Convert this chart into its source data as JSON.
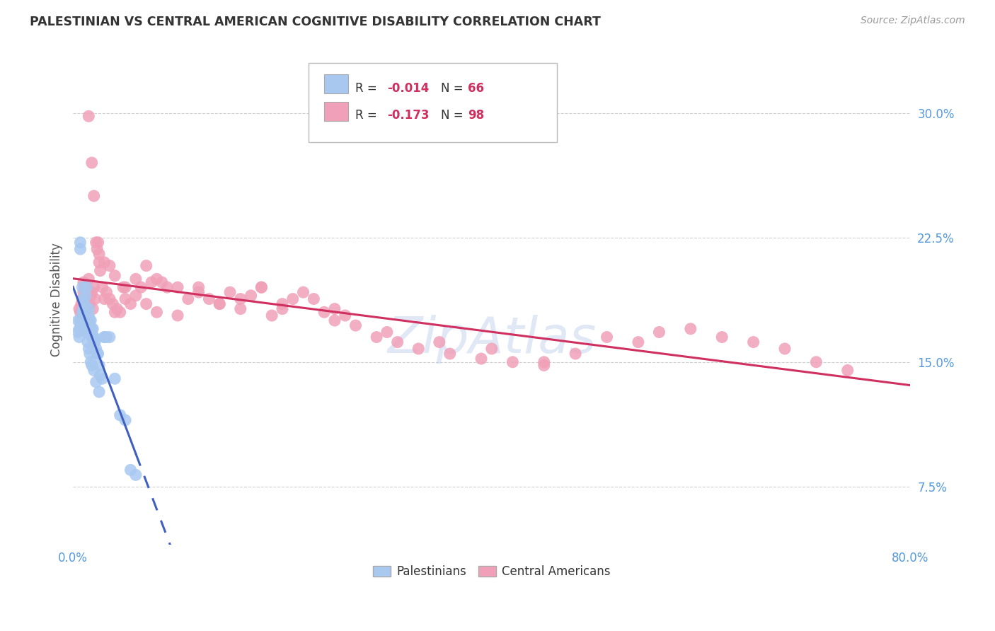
{
  "title": "PALESTINIAN VS CENTRAL AMERICAN COGNITIVE DISABILITY CORRELATION CHART",
  "source": "Source: ZipAtlas.com",
  "ylabel": "Cognitive Disability",
  "xlim": [
    0.0,
    0.8
  ],
  "ylim": [
    0.04,
    0.335
  ],
  "yticks": [
    0.075,
    0.15,
    0.225,
    0.3
  ],
  "ytick_labels": [
    "7.5%",
    "15.0%",
    "22.5%",
    "30.0%"
  ],
  "xticks": [
    0.0,
    0.1,
    0.2,
    0.3,
    0.4,
    0.5,
    0.6,
    0.7,
    0.8
  ],
  "xtick_labels": [
    "0.0%",
    "",
    "",
    "",
    "",
    "",
    "",
    "",
    "80.0%"
  ],
  "grid_color": "#d0d0d0",
  "background_color": "#ffffff",
  "palestinians": {
    "R": -0.014,
    "N": 66,
    "color": "#a8c8f0",
    "line_color": "#4060c0",
    "label": "Palestinians",
    "x": [
      0.005,
      0.005,
      0.006,
      0.006,
      0.007,
      0.007,
      0.008,
      0.008,
      0.009,
      0.009,
      0.01,
      0.01,
      0.01,
      0.01,
      0.011,
      0.011,
      0.012,
      0.012,
      0.013,
      0.013,
      0.013,
      0.014,
      0.014,
      0.015,
      0.015,
      0.016,
      0.016,
      0.017,
      0.017,
      0.018,
      0.018,
      0.019,
      0.019,
      0.02,
      0.02,
      0.021,
      0.022,
      0.023,
      0.024,
      0.025,
      0.026,
      0.028,
      0.03,
      0.032,
      0.035,
      0.04,
      0.045,
      0.05,
      0.055,
      0.06,
      0.007,
      0.008,
      0.009,
      0.01,
      0.011,
      0.012,
      0.013,
      0.014,
      0.015,
      0.016,
      0.017,
      0.018,
      0.02,
      0.022,
      0.025,
      0.03
    ],
    "y": [
      0.175,
      0.168,
      0.165,
      0.17,
      0.222,
      0.218,
      0.175,
      0.172,
      0.195,
      0.18,
      0.188,
      0.182,
      0.175,
      0.178,
      0.185,
      0.178,
      0.19,
      0.175,
      0.195,
      0.178,
      0.17,
      0.175,
      0.172,
      0.182,
      0.178,
      0.175,
      0.168,
      0.175,
      0.168,
      0.17,
      0.165,
      0.17,
      0.165,
      0.165,
      0.162,
      0.162,
      0.158,
      0.155,
      0.155,
      0.148,
      0.142,
      0.14,
      0.165,
      0.165,
      0.165,
      0.14,
      0.118,
      0.115,
      0.085,
      0.082,
      0.175,
      0.172,
      0.175,
      0.178,
      0.175,
      0.17,
      0.168,
      0.162,
      0.158,
      0.155,
      0.15,
      0.148,
      0.145,
      0.138,
      0.132,
      0.165
    ]
  },
  "central_americans": {
    "R": -0.173,
    "N": 98,
    "color": "#f0a0b8",
    "line_color": "#d03060",
    "label": "Central Americans",
    "x": [
      0.006,
      0.007,
      0.008,
      0.009,
      0.01,
      0.01,
      0.011,
      0.012,
      0.013,
      0.014,
      0.015,
      0.016,
      0.017,
      0.018,
      0.019,
      0.02,
      0.021,
      0.022,
      0.023,
      0.024,
      0.025,
      0.026,
      0.028,
      0.03,
      0.032,
      0.035,
      0.038,
      0.04,
      0.042,
      0.045,
      0.048,
      0.05,
      0.055,
      0.06,
      0.065,
      0.07,
      0.075,
      0.08,
      0.085,
      0.09,
      0.1,
      0.11,
      0.12,
      0.13,
      0.14,
      0.15,
      0.16,
      0.17,
      0.18,
      0.19,
      0.2,
      0.21,
      0.22,
      0.23,
      0.24,
      0.25,
      0.26,
      0.27,
      0.29,
      0.31,
      0.33,
      0.36,
      0.39,
      0.42,
      0.45,
      0.48,
      0.51,
      0.54,
      0.56,
      0.59,
      0.62,
      0.65,
      0.68,
      0.71,
      0.74,
      0.012,
      0.015,
      0.018,
      0.02,
      0.025,
      0.03,
      0.035,
      0.04,
      0.05,
      0.06,
      0.07,
      0.08,
      0.1,
      0.12,
      0.14,
      0.16,
      0.18,
      0.2,
      0.25,
      0.3,
      0.35,
      0.4,
      0.45
    ],
    "y": [
      0.182,
      0.18,
      0.185,
      0.188,
      0.198,
      0.192,
      0.195,
      0.19,
      0.195,
      0.188,
      0.2,
      0.185,
      0.19,
      0.192,
      0.182,
      0.195,
      0.188,
      0.222,
      0.218,
      0.222,
      0.21,
      0.205,
      0.195,
      0.188,
      0.192,
      0.188,
      0.185,
      0.18,
      0.182,
      0.18,
      0.195,
      0.188,
      0.185,
      0.2,
      0.195,
      0.208,
      0.198,
      0.2,
      0.198,
      0.195,
      0.195,
      0.188,
      0.195,
      0.188,
      0.185,
      0.192,
      0.188,
      0.19,
      0.195,
      0.178,
      0.182,
      0.188,
      0.192,
      0.188,
      0.18,
      0.182,
      0.178,
      0.172,
      0.165,
      0.162,
      0.158,
      0.155,
      0.152,
      0.15,
      0.148,
      0.155,
      0.165,
      0.162,
      0.168,
      0.17,
      0.165,
      0.162,
      0.158,
      0.15,
      0.145,
      0.178,
      0.298,
      0.27,
      0.25,
      0.215,
      0.21,
      0.208,
      0.202,
      0.195,
      0.19,
      0.185,
      0.18,
      0.178,
      0.192,
      0.185,
      0.182,
      0.195,
      0.185,
      0.175,
      0.168,
      0.162,
      0.158,
      0.15
    ]
  }
}
